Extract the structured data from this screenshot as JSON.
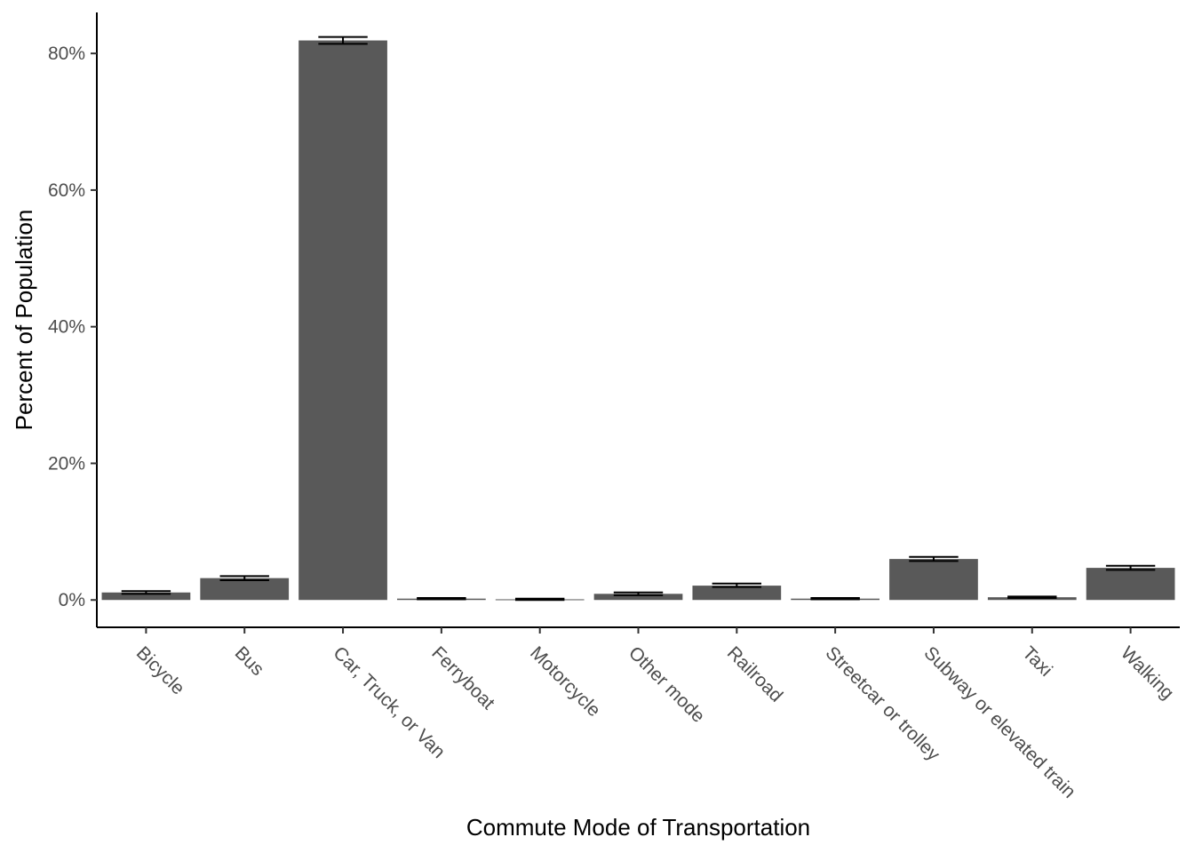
{
  "chart_data": {
    "type": "bar",
    "title": "",
    "xlabel": "Commute Mode of Transportation",
    "ylabel": "Percent of Population",
    "categories": [
      "Bicycle",
      "Bus",
      "Car, Truck, or Van",
      "Ferryboat",
      "Motorcycle",
      "Other mode",
      "Railroad",
      "Streetcar or trolley",
      "Subway or elevated train",
      "Taxi",
      "Walking"
    ],
    "values": [
      1.1,
      3.2,
      81.9,
      0.2,
      0.1,
      0.9,
      2.1,
      0.2,
      6.0,
      0.4,
      4.7
    ],
    "error_low": [
      0.9,
      2.9,
      81.4,
      0.1,
      0.0,
      0.7,
      1.9,
      0.1,
      5.7,
      0.3,
      4.4
    ],
    "error_high": [
      1.3,
      3.5,
      82.4,
      0.3,
      0.2,
      1.1,
      2.4,
      0.3,
      6.3,
      0.5,
      5.0
    ],
    "yticks": [
      0,
      20,
      40,
      60,
      80
    ],
    "ytick_labels": [
      "0%",
      "20%",
      "40%",
      "60%",
      "80%"
    ],
    "ylim": [
      -4,
      86
    ],
    "bar_color": "#595959",
    "grid": false,
    "legend": "none"
  }
}
